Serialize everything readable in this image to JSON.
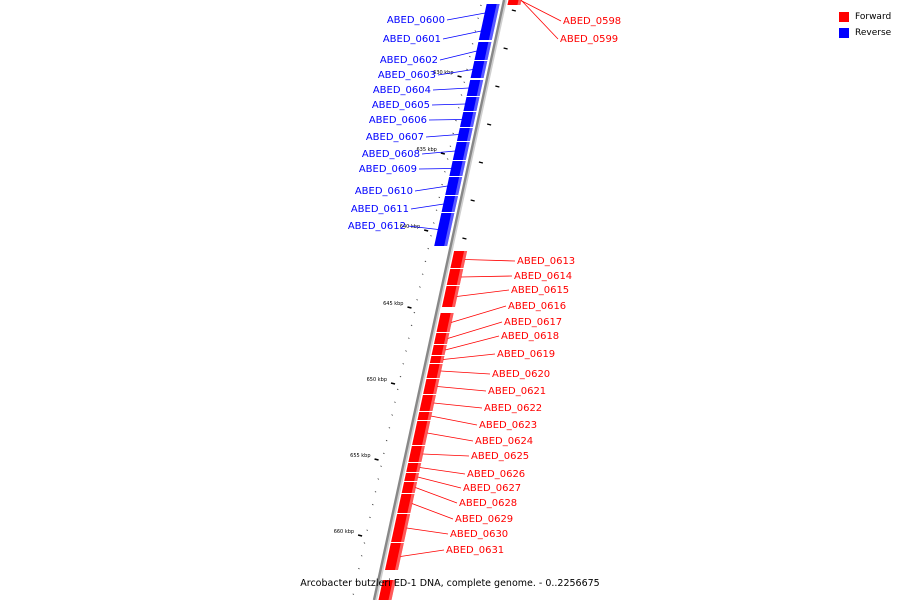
{
  "colors": {
    "forward": "#ff0000",
    "reverse": "#0000ff",
    "backbone": "#888888"
  },
  "legend": [
    {
      "label": "Forward",
      "color": "#ff0000"
    },
    {
      "label": "Reverse",
      "color": "#0000ff"
    }
  ],
  "caption": "Arcobacter butzleri ED-1 DNA, complete genome. - 0..2256675",
  "scale": {
    "unit": "kbp",
    "labeled_ticks": [
      "630 kbp",
      "635 kbp",
      "640 kbp",
      "645 kbp",
      "650 kbp",
      "655 kbp",
      "660 kbp"
    ]
  },
  "genes": [
    {
      "name": "ABED_0598",
      "strand": "forward"
    },
    {
      "name": "ABED_0599",
      "strand": "forward"
    },
    {
      "name": "ABED_0600",
      "strand": "reverse"
    },
    {
      "name": "ABED_0601",
      "strand": "reverse"
    },
    {
      "name": "ABED_0602",
      "strand": "reverse"
    },
    {
      "name": "ABED_0603",
      "strand": "reverse"
    },
    {
      "name": "ABED_0604",
      "strand": "reverse"
    },
    {
      "name": "ABED_0605",
      "strand": "reverse"
    },
    {
      "name": "ABED_0606",
      "strand": "reverse"
    },
    {
      "name": "ABED_0607",
      "strand": "reverse"
    },
    {
      "name": "ABED_0608",
      "strand": "reverse"
    },
    {
      "name": "ABED_0609",
      "strand": "reverse"
    },
    {
      "name": "ABED_0610",
      "strand": "reverse"
    },
    {
      "name": "ABED_0611",
      "strand": "reverse"
    },
    {
      "name": "ABED_0612",
      "strand": "reverse"
    },
    {
      "name": "ABED_0613",
      "strand": "forward"
    },
    {
      "name": "ABED_0614",
      "strand": "forward"
    },
    {
      "name": "ABED_0615",
      "strand": "forward"
    },
    {
      "name": "ABED_0616",
      "strand": "forward"
    },
    {
      "name": "ABED_0617",
      "strand": "forward"
    },
    {
      "name": "ABED_0618",
      "strand": "forward"
    },
    {
      "name": "ABED_0619",
      "strand": "forward"
    },
    {
      "name": "ABED_0620",
      "strand": "forward"
    },
    {
      "name": "ABED_0621",
      "strand": "forward"
    },
    {
      "name": "ABED_0622",
      "strand": "forward"
    },
    {
      "name": "ABED_0623",
      "strand": "forward"
    },
    {
      "name": "ABED_0624",
      "strand": "forward"
    },
    {
      "name": "ABED_0625",
      "strand": "forward"
    },
    {
      "name": "ABED_0626",
      "strand": "forward"
    },
    {
      "name": "ABED_0627",
      "strand": "forward"
    },
    {
      "name": "ABED_0628",
      "strand": "forward"
    },
    {
      "name": "ABED_0629",
      "strand": "forward"
    },
    {
      "name": "ABED_0630",
      "strand": "forward"
    },
    {
      "name": "ABED_0631",
      "strand": "forward"
    }
  ]
}
